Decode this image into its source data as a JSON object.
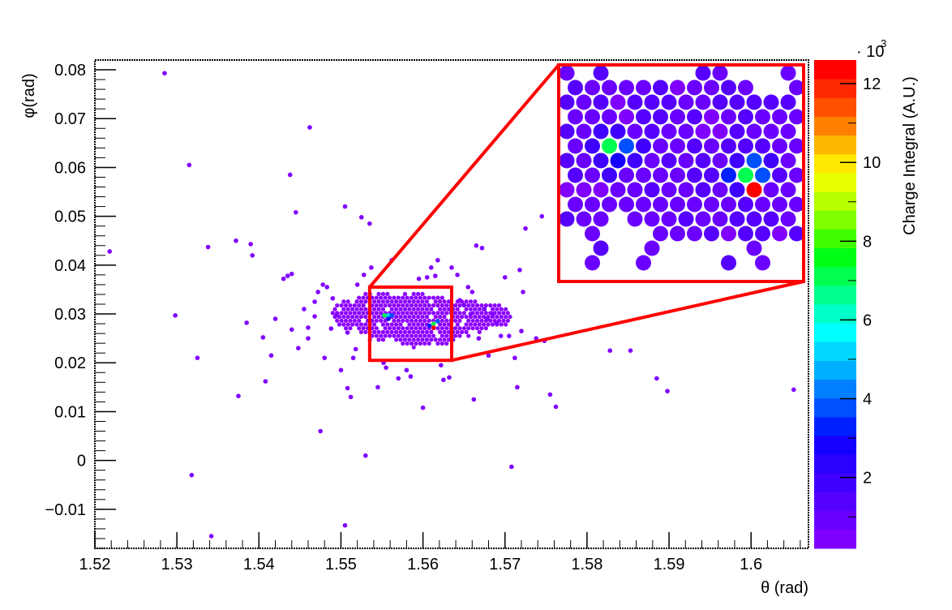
{
  "chart_data": {
    "type": "scatter",
    "title": "",
    "xlabel": "θ (rad)",
    "ylabel": "φ(rad)",
    "colorbar_label": "Charge Integral (A.U.)",
    "colorbar_exponent_prefix": "· 10",
    "colorbar_exponent": "3",
    "xlim": [
      1.52,
      1.607
    ],
    "ylim": [
      -0.018,
      0.082
    ],
    "colorbar_range": [
      0.2,
      12.6
    ],
    "x_ticks": [
      {
        "value": 1.52,
        "label": "1.52"
      },
      {
        "value": 1.53,
        "label": "1.53"
      },
      {
        "value": 1.54,
        "label": "1.54"
      },
      {
        "value": 1.55,
        "label": "1.55"
      },
      {
        "value": 1.56,
        "label": "1.56"
      },
      {
        "value": 1.57,
        "label": "1.57"
      },
      {
        "value": 1.58,
        "label": "1.58"
      },
      {
        "value": 1.59,
        "label": "1.59"
      },
      {
        "value": 1.6,
        "label": "1.6"
      }
    ],
    "y_ticks": [
      {
        "value": -0.01,
        "label": "−0.01"
      },
      {
        "value": 0,
        "label": "0"
      },
      {
        "value": 0.01,
        "label": "0.01"
      },
      {
        "value": 0.02,
        "label": "0.02"
      },
      {
        "value": 0.03,
        "label": "0.03"
      },
      {
        "value": 0.04,
        "label": "0.04"
      },
      {
        "value": 0.05,
        "label": "0.05"
      },
      {
        "value": 0.06,
        "label": "0.06"
      },
      {
        "value": 0.07,
        "label": "0.07"
      },
      {
        "value": 0.08,
        "label": "0.08"
      }
    ],
    "colorbar_ticks": [
      {
        "value": 2,
        "label": "2"
      },
      {
        "value": 4,
        "label": "4"
      },
      {
        "value": 6,
        "label": "6"
      },
      {
        "value": 8,
        "label": "8"
      },
      {
        "value": 10,
        "label": "10"
      },
      {
        "value": 12,
        "label": "12"
      }
    ],
    "colorbar_colors": [
      "#8000ff",
      "#6a00ff",
      "#5500ff",
      "#3f00ff",
      "#2a00ff",
      "#1500ff",
      "#0020ff",
      "#0050ff",
      "#0080ff",
      "#00b0ff",
      "#00d8ff",
      "#00ffff",
      "#00ffc8",
      "#00ff8c",
      "#00ff50",
      "#00ff14",
      "#40ff00",
      "#80ff00",
      "#b8ff00",
      "#e8ff00",
      "#ffe800",
      "#ffb800",
      "#ff8000",
      "#ff5000",
      "#ff2800",
      "#ff0000"
    ],
    "zoom_region": {
      "x": [
        1.5535,
        1.5635
      ],
      "y": [
        0.0205,
        0.0355
      ]
    },
    "points": [
      {
        "x": 1.5285,
        "y": 0.0793,
        "z": 0.5
      },
      {
        "x": 1.5315,
        "y": 0.0605,
        "z": 0.5
      },
      {
        "x": 1.5462,
        "y": 0.0682,
        "z": 0.5
      },
      {
        "x": 1.5218,
        "y": 0.0428,
        "z": 0.5
      },
      {
        "x": 1.5298,
        "y": 0.0297,
        "z": 0.5
      },
      {
        "x": 1.5325,
        "y": 0.021,
        "z": 0.5
      },
      {
        "x": 1.5318,
        "y": -0.003,
        "z": 0.5
      },
      {
        "x": 1.5342,
        "y": -0.0155,
        "z": 0.5
      },
      {
        "x": 1.5338,
        "y": 0.0437,
        "z": 0.5
      },
      {
        "x": 1.5375,
        "y": 0.0132,
        "z": 0.5
      },
      {
        "x": 1.5372,
        "y": 0.045,
        "z": 0.5
      },
      {
        "x": 1.539,
        "y": 0.0443,
        "z": 0.5
      },
      {
        "x": 1.5385,
        "y": 0.0282,
        "z": 0.5
      },
      {
        "x": 1.5392,
        "y": 0.042,
        "z": 0.5
      },
      {
        "x": 1.5405,
        "y": 0.0252,
        "z": 0.5
      },
      {
        "x": 1.5408,
        "y": 0.0162,
        "z": 0.5
      },
      {
        "x": 1.5415,
        "y": 0.0215,
        "z": 0.5
      },
      {
        "x": 1.543,
        "y": 0.0372,
        "z": 0.5
      },
      {
        "x": 1.5435,
        "y": 0.0378,
        "z": 0.5
      },
      {
        "x": 1.544,
        "y": 0.0382,
        "z": 0.5
      },
      {
        "x": 1.5438,
        "y": 0.0585,
        "z": 0.5
      },
      {
        "x": 1.5445,
        "y": 0.0508,
        "z": 0.5
      },
      {
        "x": 1.5448,
        "y": 0.023,
        "z": 0.5
      },
      {
        "x": 1.5455,
        "y": 0.031,
        "z": 0.5
      },
      {
        "x": 1.546,
        "y": 0.025,
        "z": 0.5
      },
      {
        "x": 1.5468,
        "y": 0.0295,
        "z": 0.5
      },
      {
        "x": 1.5472,
        "y": 0.0345,
        "z": 0.5
      },
      {
        "x": 1.5475,
        "y": 0.006,
        "z": 0.5
      },
      {
        "x": 1.5478,
        "y": 0.036,
        "z": 0.5
      },
      {
        "x": 1.548,
        "y": 0.021,
        "z": 0.5
      },
      {
        "x": 1.5483,
        "y": 0.0355,
        "z": 0.5
      },
      {
        "x": 1.5488,
        "y": 0.027,
        "z": 0.5
      },
      {
        "x": 1.549,
        "y": 0.0332,
        "z": 0.5
      },
      {
        "x": 1.5495,
        "y": 0.0298,
        "z": 0.5
      },
      {
        "x": 1.55,
        "y": 0.0185,
        "z": 0.5
      },
      {
        "x": 1.5505,
        "y": 0.052,
        "z": 0.5
      },
      {
        "x": 1.5505,
        "y": -0.0133,
        "z": 0.5
      },
      {
        "x": 1.5508,
        "y": 0.0148,
        "z": 0.5
      },
      {
        "x": 1.5512,
        "y": 0.013,
        "z": 0.5
      },
      {
        "x": 1.5515,
        "y": 0.021,
        "z": 0.5
      },
      {
        "x": 1.5518,
        "y": 0.0228,
        "z": 0.5
      },
      {
        "x": 1.552,
        "y": 0.036,
        "z": 0.5
      },
      {
        "x": 1.5525,
        "y": 0.0498,
        "z": 0.5
      },
      {
        "x": 1.5528,
        "y": 0.038,
        "z": 0.5
      },
      {
        "x": 1.553,
        "y": 0.001,
        "z": 0.5
      },
      {
        "x": 1.5535,
        "y": 0.0485,
        "z": 0.5
      },
      {
        "x": 1.5537,
        "y": 0.0395,
        "z": 0.5
      },
      {
        "x": 1.5545,
        "y": 0.015,
        "z": 0.5
      },
      {
        "x": 1.5552,
        "y": 0.02,
        "z": 0.5
      },
      {
        "x": 1.5555,
        "y": 0.019,
        "z": 0.5
      },
      {
        "x": 1.5562,
        "y": 0.041,
        "z": 0.5
      },
      {
        "x": 1.557,
        "y": 0.0168,
        "z": 0.5
      },
      {
        "x": 1.558,
        "y": 0.0185,
        "z": 0.5
      },
      {
        "x": 1.5585,
        "y": 0.0172,
        "z": 0.5
      },
      {
        "x": 1.5595,
        "y": 0.0372,
        "z": 0.5
      },
      {
        "x": 1.56,
        "y": 0.0108,
        "z": 0.5
      },
      {
        "x": 1.5605,
        "y": 0.0375,
        "z": 0.5
      },
      {
        "x": 1.561,
        "y": 0.0395,
        "z": 0.5
      },
      {
        "x": 1.5615,
        "y": 0.0378,
        "z": 0.5
      },
      {
        "x": 1.5618,
        "y": 0.041,
        "z": 0.5
      },
      {
        "x": 1.5622,
        "y": 0.0195,
        "z": 0.5
      },
      {
        "x": 1.5625,
        "y": 0.0165,
        "z": 0.5
      },
      {
        "x": 1.5632,
        "y": 0.017,
        "z": 0.5
      },
      {
        "x": 1.5635,
        "y": 0.0395,
        "z": 0.5
      },
      {
        "x": 1.5642,
        "y": 0.038,
        "z": 0.5
      },
      {
        "x": 1.5645,
        "y": 0.0328,
        "z": 0.5
      },
      {
        "x": 1.565,
        "y": 0.0318,
        "z": 0.5
      },
      {
        "x": 1.5655,
        "y": 0.0355,
        "z": 0.5
      },
      {
        "x": 1.5658,
        "y": 0.03,
        "z": 0.5
      },
      {
        "x": 1.566,
        "y": 0.0345,
        "z": 0.5
      },
      {
        "x": 1.5662,
        "y": 0.0125,
        "z": 0.5
      },
      {
        "x": 1.5665,
        "y": 0.044,
        "z": 0.5
      },
      {
        "x": 1.5668,
        "y": 0.025,
        "z": 0.5
      },
      {
        "x": 1.5672,
        "y": 0.0435,
        "z": 0.5
      },
      {
        "x": 1.5675,
        "y": 0.031,
        "z": 0.5
      },
      {
        "x": 1.5678,
        "y": 0.029,
        "z": 0.5
      },
      {
        "x": 1.568,
        "y": 0.0215,
        "z": 0.5
      },
      {
        "x": 1.5685,
        "y": 0.03,
        "z": 0.5
      },
      {
        "x": 1.569,
        "y": 0.028,
        "z": 0.5
      },
      {
        "x": 1.5695,
        "y": 0.0255,
        "z": 0.5
      },
      {
        "x": 1.57,
        "y": 0.0375,
        "z": 0.5
      },
      {
        "x": 1.5705,
        "y": 0.0255,
        "z": 0.5
      },
      {
        "x": 1.5708,
        "y": -0.0013,
        "z": 0.5
      },
      {
        "x": 1.5712,
        "y": 0.021,
        "z": 0.5
      },
      {
        "x": 1.5715,
        "y": 0.015,
        "z": 0.5
      },
      {
        "x": 1.5718,
        "y": 0.039,
        "z": 0.5
      },
      {
        "x": 1.5722,
        "y": 0.0345,
        "z": 0.5
      },
      {
        "x": 1.5725,
        "y": 0.0475,
        "z": 0.5
      },
      {
        "x": 1.5738,
        "y": 0.025,
        "z": 0.5
      },
      {
        "x": 1.5745,
        "y": 0.05,
        "z": 0.5
      },
      {
        "x": 1.5755,
        "y": 0.0135,
        "z": 0.5
      },
      {
        "x": 1.5762,
        "y": 0.011,
        "z": 0.5
      },
      {
        "x": 1.5748,
        "y": 0.0245,
        "z": 0.5
      },
      {
        "x": 1.5828,
        "y": 0.0225,
        "z": 0.5
      },
      {
        "x": 1.5853,
        "y": 0.0225,
        "z": 0.5
      },
      {
        "x": 1.5885,
        "y": 0.0168,
        "z": 0.5
      },
      {
        "x": 1.5898,
        "y": 0.0142,
        "z": 0.5
      },
      {
        "x": 1.6052,
        "y": 0.0145,
        "z": 0.5
      },
      {
        "x": 1.544,
        "y": 0.0268,
        "z": 0.5
      },
      {
        "x": 1.542,
        "y": 0.029,
        "z": 0.5
      },
      {
        "x": 1.546,
        "y": 0.0272,
        "z": 0.5
      },
      {
        "x": 1.5508,
        "y": 0.0262,
        "z": 0.5
      },
      {
        "x": 1.5468,
        "y": 0.0325,
        "z": 0.5
      },
      {
        "x": 1.572,
        "y": 0.0265,
        "z": 0.5
      }
    ],
    "hex_clusters": [
      {
        "cx": 1.551,
        "cy": 0.03,
        "rx": 0.0022,
        "ry": 0.0028
      },
      {
        "cx": 1.5545,
        "cy": 0.0298,
        "rx": 0.003,
        "ry": 0.0045
      },
      {
        "cx": 1.559,
        "cy": 0.029,
        "rx": 0.0035,
        "ry": 0.005
      },
      {
        "cx": 1.562,
        "cy": 0.0285,
        "rx": 0.0032,
        "ry": 0.0045
      },
      {
        "cx": 1.5655,
        "cy": 0.029,
        "rx": 0.0028,
        "ry": 0.0035
      },
      {
        "cx": 1.5685,
        "cy": 0.0295,
        "rx": 0.002,
        "ry": 0.0022
      }
    ],
    "hotspots": [
      {
        "x": 1.5558,
        "y": 0.0297,
        "z": 5.0
      },
      {
        "x": 1.5553,
        "y": 0.0297,
        "z": 7.0
      },
      {
        "x": 1.5562,
        "y": 0.0297,
        "z": 4.0
      },
      {
        "x": 1.5558,
        "y": 0.029,
        "z": 3.0
      },
      {
        "x": 1.5613,
        "y": 0.028,
        "z": 7.0
      },
      {
        "x": 1.5613,
        "y": 0.0272,
        "z": 12.5
      },
      {
        "x": 1.5618,
        "y": 0.0285,
        "z": 4.0
      },
      {
        "x": 1.5608,
        "y": 0.0276,
        "z": 3.5
      }
    ]
  }
}
